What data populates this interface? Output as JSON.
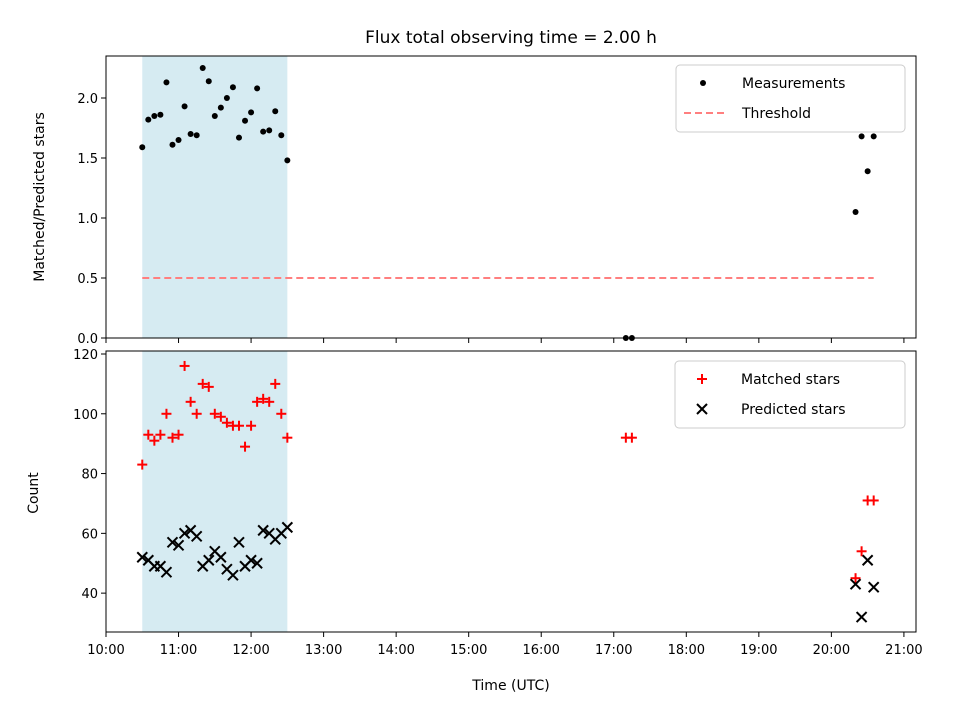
{
  "chart_data": [
    {
      "type": "scatter",
      "title": "Flux total observing time = 2.00 h",
      "xlabel": "",
      "ylabel": "Matched/Predicted stars",
      "x_ticks": [
        "10:00",
        "11:00",
        "12:00",
        "13:00",
        "14:00",
        "15:00",
        "16:00",
        "17:00",
        "18:00",
        "19:00",
        "20:00",
        "21:00"
      ],
      "xlim": [
        "10:00",
        "21:10"
      ],
      "ylim": [
        0,
        2.35
      ],
      "y_ticks": [
        "0.0",
        "0.5",
        "1.0",
        "1.5",
        "2.0"
      ],
      "shaded_span": [
        "10:30",
        "12:30"
      ],
      "shaded_color": "#add8e6",
      "legend_position": "top-right",
      "series": [
        {
          "name": "Measurements",
          "marker": "dot",
          "color": "#000000",
          "points": [
            [
              "10:30",
              1.59
            ],
            [
              "10:35",
              1.82
            ],
            [
              "10:40",
              1.85
            ],
            [
              "10:45",
              1.86
            ],
            [
              "10:50",
              2.13
            ],
            [
              "10:55",
              1.61
            ],
            [
              "11:00",
              1.65
            ],
            [
              "11:05",
              1.93
            ],
            [
              "11:10",
              1.7
            ],
            [
              "11:15",
              1.69
            ],
            [
              "11:20",
              2.25
            ],
            [
              "11:25",
              2.14
            ],
            [
              "11:30",
              1.85
            ],
            [
              "11:35",
              1.92
            ],
            [
              "11:40",
              2.0
            ],
            [
              "11:45",
              2.09
            ],
            [
              "11:50",
              1.67
            ],
            [
              "11:55",
              1.81
            ],
            [
              "12:00",
              1.88
            ],
            [
              "12:05",
              2.08
            ],
            [
              "12:10",
              1.72
            ],
            [
              "12:15",
              1.73
            ],
            [
              "12:20",
              1.89
            ],
            [
              "12:25",
              1.69
            ],
            [
              "12:30",
              1.48
            ],
            [
              "17:10",
              0.0
            ],
            [
              "17:15",
              0.0
            ],
            [
              "20:20",
              1.05
            ],
            [
              "20:25",
              1.68
            ],
            [
              "20:30",
              1.39
            ],
            [
              "20:35",
              1.68
            ]
          ]
        },
        {
          "name": "Threshold",
          "line_style": "dashed",
          "color": "#ff7f7f",
          "x_range": [
            "10:30",
            "20:35"
          ],
          "value": 0.5
        }
      ]
    },
    {
      "type": "scatter",
      "title": "",
      "xlabel": "Time (UTC)",
      "ylabel": "Count",
      "x_ticks": [
        "10:00",
        "11:00",
        "12:00",
        "13:00",
        "14:00",
        "15:00",
        "16:00",
        "17:00",
        "18:00",
        "19:00",
        "20:00",
        "21:00"
      ],
      "xlim": [
        "10:00",
        "21:10"
      ],
      "ylim": [
        27,
        121
      ],
      "y_ticks": [
        "40",
        "60",
        "80",
        "100",
        "120"
      ],
      "shaded_span": [
        "10:30",
        "12:30"
      ],
      "shaded_color": "#add8e6",
      "legend_position": "top-right",
      "series": [
        {
          "name": "Matched stars",
          "marker": "plus",
          "color": "#ff0000",
          "points": [
            [
              "10:30",
              83
            ],
            [
              "10:35",
              93
            ],
            [
              "10:40",
              91
            ],
            [
              "10:45",
              93
            ],
            [
              "10:50",
              100
            ],
            [
              "10:55",
              92
            ],
            [
              "11:00",
              93
            ],
            [
              "11:05",
              116
            ],
            [
              "11:10",
              104
            ],
            [
              "11:15",
              100
            ],
            [
              "11:20",
              110
            ],
            [
              "11:25",
              109
            ],
            [
              "11:30",
              100
            ],
            [
              "11:35",
              99
            ],
            [
              "11:40",
              97
            ],
            [
              "11:45",
              96
            ],
            [
              "11:50",
              96
            ],
            [
              "11:55",
              89
            ],
            [
              "12:00",
              96
            ],
            [
              "12:05",
              104
            ],
            [
              "12:10",
              105
            ],
            [
              "12:15",
              104
            ],
            [
              "12:20",
              110
            ],
            [
              "12:25",
              100
            ],
            [
              "12:30",
              92
            ],
            [
              "17:10",
              92
            ],
            [
              "17:15",
              92
            ],
            [
              "20:20",
              45
            ],
            [
              "20:25",
              54
            ],
            [
              "20:30",
              71
            ],
            [
              "20:35",
              71
            ]
          ]
        },
        {
          "name": "Predicted stars",
          "marker": "x",
          "color": "#000000",
          "points": [
            [
              "10:30",
              52
            ],
            [
              "10:35",
              51
            ],
            [
              "10:40",
              49
            ],
            [
              "10:45",
              49
            ],
            [
              "10:50",
              47
            ],
            [
              "10:55",
              57
            ],
            [
              "11:00",
              56
            ],
            [
              "11:05",
              60
            ],
            [
              "11:10",
              61
            ],
            [
              "11:15",
              59
            ],
            [
              "11:20",
              49
            ],
            [
              "11:25",
              51
            ],
            [
              "11:30",
              54
            ],
            [
              "11:35",
              52
            ],
            [
              "11:40",
              48
            ],
            [
              "11:45",
              46
            ],
            [
              "11:50",
              57
            ],
            [
              "11:55",
              49
            ],
            [
              "12:00",
              51
            ],
            [
              "12:05",
              50
            ],
            [
              "12:10",
              61
            ],
            [
              "12:15",
              60
            ],
            [
              "12:20",
              58
            ],
            [
              "12:25",
              60
            ],
            [
              "12:30",
              62
            ],
            [
              "20:20",
              43
            ],
            [
              "20:25",
              32
            ],
            [
              "20:30",
              51
            ],
            [
              "20:35",
              42
            ]
          ]
        }
      ]
    }
  ]
}
